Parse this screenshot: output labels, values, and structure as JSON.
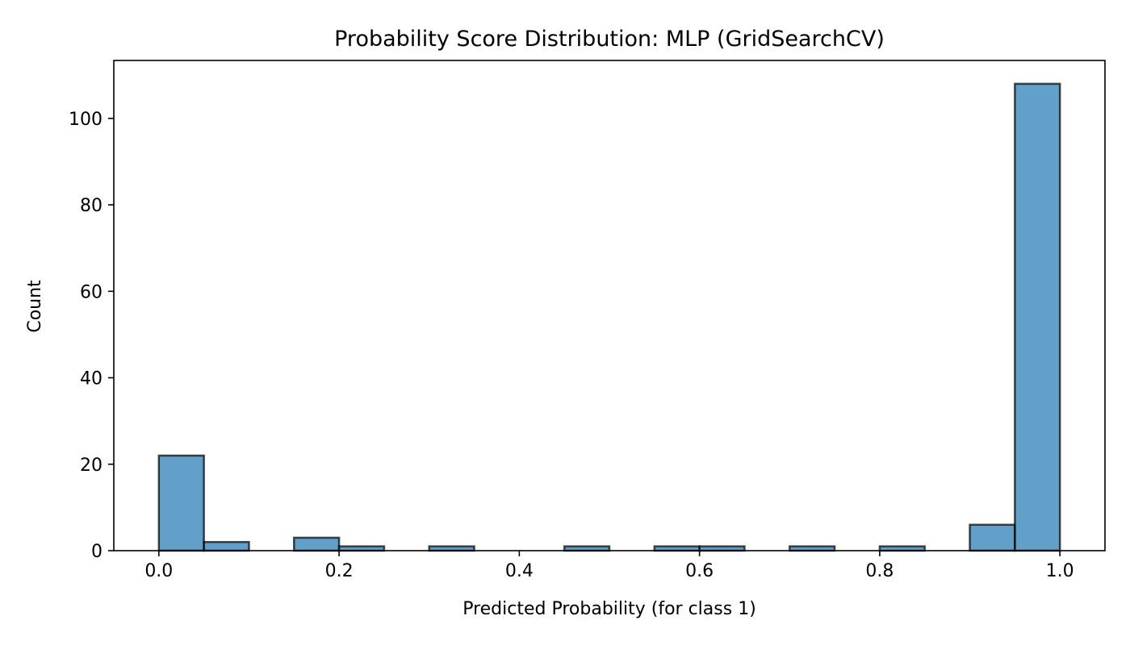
{
  "chart_data": {
    "type": "bar",
    "title": "Probability Score Distribution: MLP (GridSearchCV)",
    "xlabel": "Predicted Probability (for class 1)",
    "ylabel": "Count",
    "xlim": [
      -0.05,
      1.05
    ],
    "ylim": [
      0,
      113.4
    ],
    "xticks": [
      "0.0",
      "0.2",
      "0.4",
      "0.6",
      "0.8",
      "1.0"
    ],
    "yticks": [
      "0",
      "20",
      "40",
      "60",
      "80",
      "100"
    ],
    "grid": false,
    "bin_width": 0.05,
    "bars": [
      {
        "x0": 0.0,
        "value": 22
      },
      {
        "x0": 0.05,
        "value": 2
      },
      {
        "x0": 0.15,
        "value": 3
      },
      {
        "x0": 0.2,
        "value": 1
      },
      {
        "x0": 0.3,
        "value": 1
      },
      {
        "x0": 0.45,
        "value": 1
      },
      {
        "x0": 0.55,
        "value": 1
      },
      {
        "x0": 0.6,
        "value": 1
      },
      {
        "x0": 0.7,
        "value": 1
      },
      {
        "x0": 0.8,
        "value": 1
      },
      {
        "x0": 0.9,
        "value": 6
      },
      {
        "x0": 0.95,
        "value": 108
      }
    ],
    "colors": {
      "bar_fill": "#1f77b4",
      "bar_edge": "#000000"
    }
  }
}
